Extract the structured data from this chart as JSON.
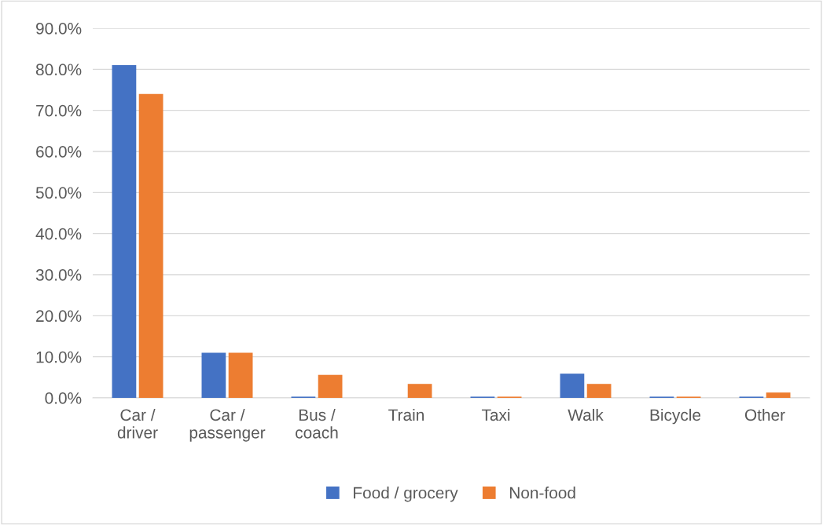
{
  "chart_data": {
    "type": "bar",
    "categories": [
      "Car /\ndriver",
      "Car /\npassenger",
      "Bus /\ncoach",
      "Train",
      "Taxi",
      "Walk",
      "Bicycle",
      "Other"
    ],
    "series": [
      {
        "name": "Food / grocery",
        "color": "#4472c4",
        "values": [
          81.0,
          11.0,
          0.3,
          0,
          0.3,
          5.9,
          0.3,
          0.3
        ]
      },
      {
        "name": "Non-food",
        "color": "#ed7d31",
        "values": [
          74.0,
          11.0,
          5.6,
          3.4,
          0.3,
          3.4,
          0.3,
          1.3
        ]
      }
    ],
    "ylim": [
      0,
      90
    ],
    "yticks": [
      {
        "value": 0,
        "label": "0.0%"
      },
      {
        "value": 10,
        "label": "10.0%"
      },
      {
        "value": 20,
        "label": "20.0%"
      },
      {
        "value": 30,
        "label": "30.0%"
      },
      {
        "value": 40,
        "label": "40.0%"
      },
      {
        "value": 50,
        "label": "50.0%"
      },
      {
        "value": 60,
        "label": "60.0%"
      },
      {
        "value": 70,
        "label": "70.0%"
      },
      {
        "value": 80,
        "label": "80.0%"
      },
      {
        "value": 90,
        "label": "90.0%"
      }
    ],
    "grid": "y",
    "legend": "bottom"
  }
}
